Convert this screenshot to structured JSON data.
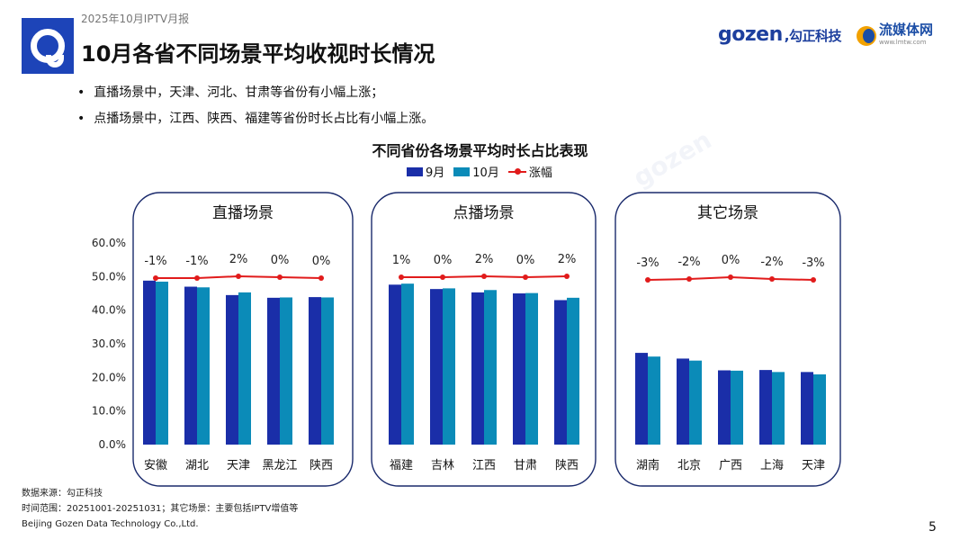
{
  "header": {
    "report_label": "2025年10月IPTV月报",
    "title": "10月各省不同场景平均收视时长情况",
    "brand_gozen": "gozen",
    "brand_gozen_cn": ",勾正科技",
    "brand_lmt": "流媒体网",
    "brand_lmt_url": "www.lmtw.com"
  },
  "bullets": [
    "直播场景中，天津、河北、甘肃等省份有小幅上涨；",
    "点播场景中，江西、陕西、福建等省份时长占比有小幅上涨。"
  ],
  "colors": {
    "sep": "#1a2ea8",
    "oct": "#0b8bb8",
    "line": "#e11b1b",
    "frame": "#1a2a6c"
  },
  "chart_data": {
    "type": "bar",
    "title": "不同省份各场景平均时长占比表现",
    "legend": [
      "9月",
      "10月",
      "涨幅"
    ],
    "ylim": [
      0,
      60
    ],
    "yticks": [
      "0.0%",
      "10.0%",
      "20.0%",
      "30.0%",
      "40.0%",
      "50.0%",
      "60.0%"
    ],
    "groups": [
      {
        "name": "直播场景",
        "categories": [
          "安徽",
          "湖北",
          "天津",
          "黑龙江",
          "陕西"
        ],
        "series": [
          {
            "name": "9月",
            "values": [
              48.8,
              47.0,
              44.5,
              43.7,
              43.9
            ]
          },
          {
            "name": "10月",
            "values": [
              48.5,
              46.8,
              45.3,
              43.8,
              43.8
            ]
          }
        ],
        "change_labels": [
          "-1%",
          "-1%",
          "2%",
          "0%",
          "0%"
        ]
      },
      {
        "name": "点播场景",
        "categories": [
          "福建",
          "吉林",
          "江西",
          "甘肃",
          "陕西"
        ],
        "series": [
          {
            "name": "9月",
            "values": [
              47.6,
              46.3,
              45.3,
              45.0,
              43.0
            ]
          },
          {
            "name": "10月",
            "values": [
              47.9,
              46.5,
              46.0,
              45.1,
              43.7
            ]
          }
        ],
        "change_labels": [
          "1%",
          "0%",
          "2%",
          "0%",
          "2%"
        ]
      },
      {
        "name": "其它场景",
        "categories": [
          "湖南",
          "北京",
          "广西",
          "上海",
          "天津"
        ],
        "series": [
          {
            "name": "9月",
            "values": [
              27.3,
              25.6,
              22.1,
              22.2,
              21.6
            ]
          },
          {
            "name": "10月",
            "values": [
              26.2,
              25.0,
              22.0,
              21.6,
              20.9
            ]
          }
        ],
        "change_labels": [
          "-3%",
          "-2%",
          "0%",
          "-2%",
          "-3%"
        ]
      }
    ]
  },
  "footer": {
    "source": "数据来源：勾正科技",
    "range": "时间范围：20251001-20251031；其它场景：主要包括IPTV增值等",
    "company": "Beijing Gozen Data Technology Co.,Ltd."
  },
  "page_number": "5"
}
